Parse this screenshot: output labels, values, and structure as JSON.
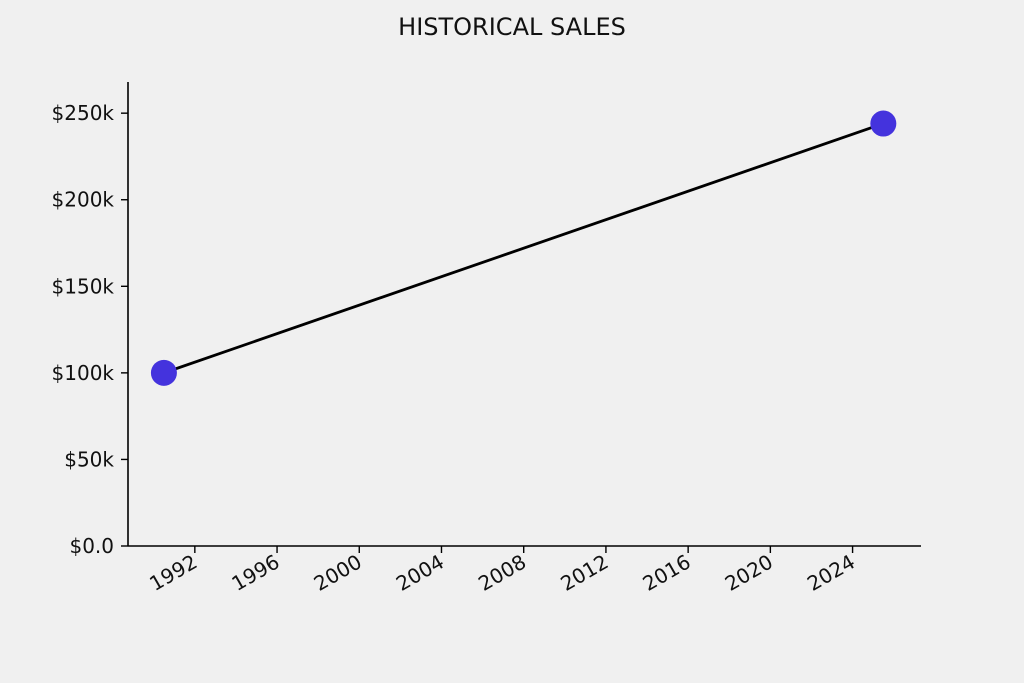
{
  "chart_data": {
    "type": "line",
    "title": "HISTORICAL SALES",
    "xlabel": "",
    "ylabel": "",
    "x": [
      "1990-07-01",
      "2025-07-01"
    ],
    "series": [
      {
        "values": [
          100000,
          244000
        ]
      }
    ],
    "x_ticks": [
      "1992",
      "1996",
      "2000",
      "2004",
      "2008",
      "2012",
      "2016",
      "2020",
      "2024"
    ],
    "y_ticks": [
      {
        "value": 0,
        "label": "$0.0"
      },
      {
        "value": 50000,
        "label": "$50k"
      },
      {
        "value": 100000,
        "label": "$100k"
      },
      {
        "value": 150000,
        "label": "$150k"
      },
      {
        "value": 200000,
        "label": "$200k"
      },
      {
        "value": 250000,
        "label": "$250k"
      }
    ],
    "xlim": [
      "1988-10-01",
      "2027-05-01"
    ],
    "ylim": [
      0,
      268000
    ],
    "grid": false,
    "line_color": "#000000",
    "marker_color": "#4433dd"
  }
}
